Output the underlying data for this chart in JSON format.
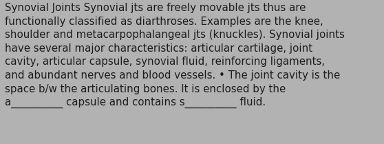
{
  "background_color": "#b2b2b2",
  "text_lines": [
    "Synovial Joints Synovial jts are freely movable jts thus are",
    "functionally classified as diarthroses. Examples are the knee,",
    "shoulder and metacarpophalangeal jts (knuckles). Synovial joints",
    "have several major characteristics: articular cartilage, joint",
    "cavity, articular capsule, synovial fluid, reinforcing ligaments,",
    "and abundant nerves and blood vessels. • The joint cavity is the",
    "space b/w the articulating bones. It is enclosed by the",
    "a__________ capsule and contains s__________ fluid."
  ],
  "font_size": 10.8,
  "text_color": "#1c1c1c",
  "font_family": "DejaVu Sans",
  "fig_width": 5.58,
  "fig_height": 2.09,
  "dpi": 100
}
